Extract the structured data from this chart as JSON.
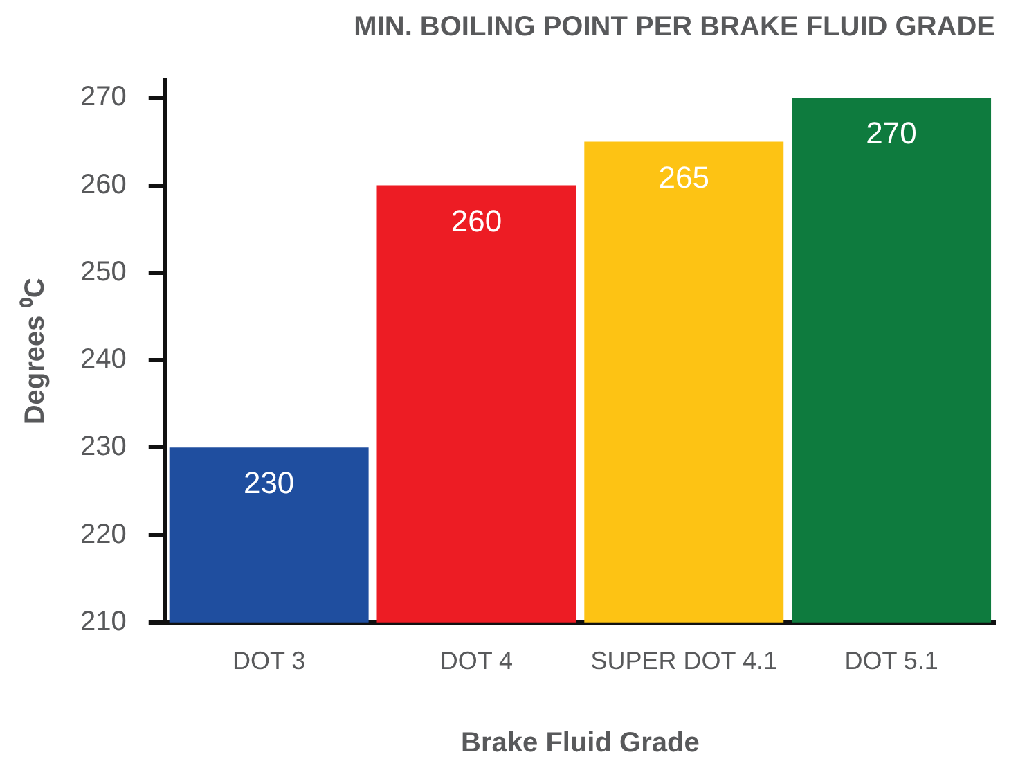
{
  "chart_data": {
    "type": "bar",
    "title": "MIN. BOILING POINT PER BRAKE FLUID GRADE",
    "xlabel": "Brake Fluid Grade",
    "ylabel": "Degrees ⁰C",
    "categories": [
      "DOT 3",
      "DOT 4",
      "SUPER DOT 4.1",
      "DOT 5.1"
    ],
    "values": [
      230,
      260,
      265,
      270
    ],
    "colors": [
      "#1f4e9f",
      "#ed1c24",
      "#fdc314",
      "#0e7b3e"
    ],
    "ylim": [
      210,
      272
    ],
    "yticks": [
      210,
      220,
      230,
      240,
      250,
      260,
      270
    ],
    "grid": false,
    "legend": false,
    "data_labels": true
  }
}
